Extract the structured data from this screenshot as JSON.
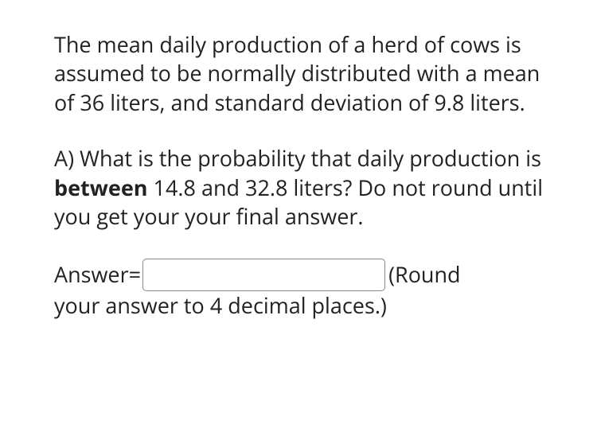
{
  "intro": {
    "text_full": "The mean daily production of a herd of cows is assumed to be normally distributed with a mean of 36 liters, and standard deviation of 9.8 liters."
  },
  "partA": {
    "prefix": "A) What is the probability that daily production is ",
    "bold": "between",
    "suffix": " 14.8 and 32.8 liters? Do not round until you get your your final answer."
  },
  "answer": {
    "label": "Answer=",
    "value": "",
    "round_open": " (Round",
    "round_rest": "your answer to 4 decimal places.)"
  },
  "colors": {
    "text": "#222222",
    "background": "#ffffff",
    "input_border": "#888888"
  },
  "typography": {
    "font_size_pt": 20,
    "line_height": 1.35,
    "font_family": "sans-serif"
  }
}
